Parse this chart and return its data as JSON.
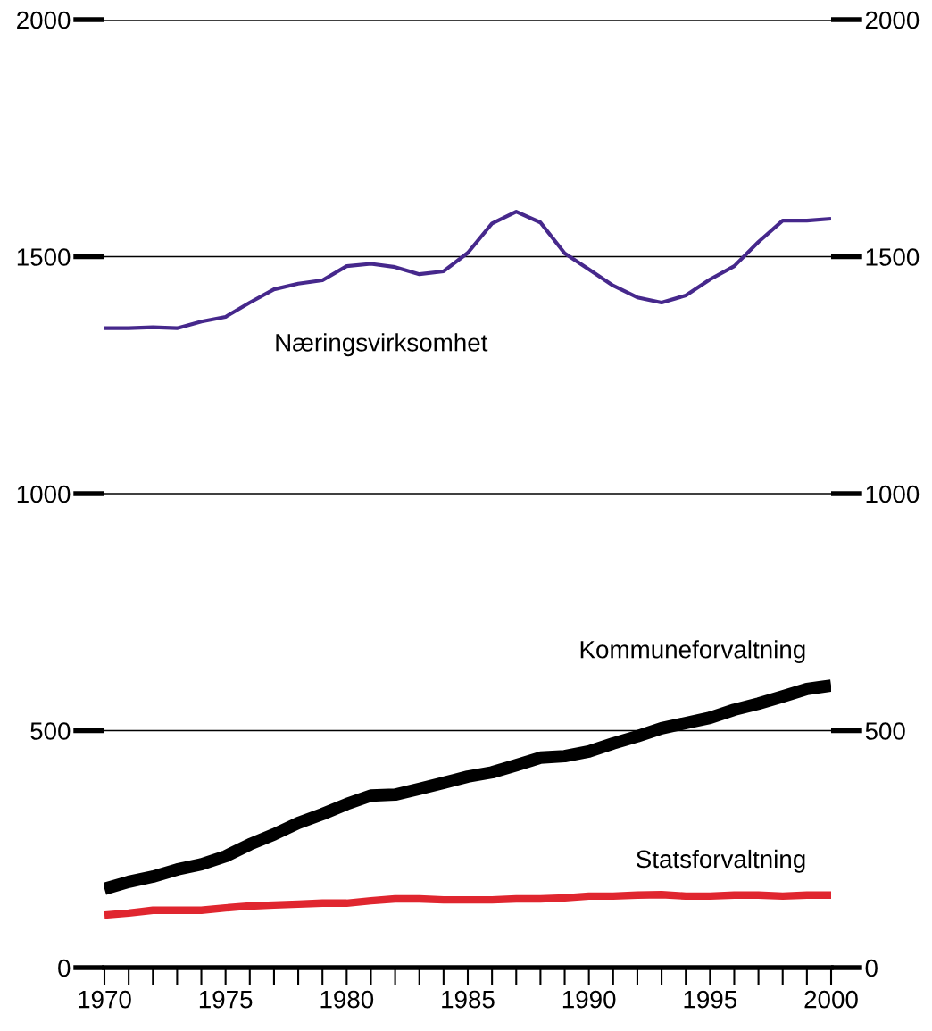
{
  "chart_data": {
    "type": "line",
    "x": [
      1970,
      1971,
      1972,
      1973,
      1974,
      1975,
      1976,
      1977,
      1978,
      1979,
      1980,
      1981,
      1982,
      1983,
      1984,
      1985,
      1986,
      1987,
      1988,
      1989,
      1990,
      1991,
      1992,
      1993,
      1994,
      1995,
      1996,
      1997,
      1998,
      1999,
      2000
    ],
    "series": [
      {
        "name": "Næringsvirksomhet",
        "color": "#46288c",
        "values": [
          1349,
          1349,
          1351,
          1349,
          1363,
          1373,
          1403,
          1431,
          1443,
          1450,
          1480,
          1485,
          1478,
          1463,
          1469,
          1508,
          1570,
          1595,
          1572,
          1507,
          1473,
          1439,
          1414,
          1403,
          1418,
          1452,
          1480,
          1531,
          1576,
          1576,
          1580
        ]
      },
      {
        "name": "Kommuneforvaltning",
        "color": "#000000",
        "values": [
          166,
          181,
          192,
          207,
          218,
          235,
          260,
          281,
          305,
          324,
          345,
          363,
          365,
          377,
          390,
          403,
          412,
          427,
          443,
          446,
          456,
          473,
          488,
          505,
          516,
          527,
          544,
          557,
          572,
          588,
          595
        ]
      },
      {
        "name": "Statsforvaltning",
        "color": "#e0262f",
        "values": [
          111,
          115,
          121,
          121,
          121,
          126,
          130,
          132,
          134,
          136,
          136,
          141,
          145,
          145,
          143,
          143,
          143,
          145,
          145,
          147,
          151,
          151,
          153,
          154,
          151,
          151,
          153,
          153,
          151,
          153,
          153
        ]
      }
    ],
    "xlim": [
      1970,
      2000
    ],
    "xticks": [
      1970,
      1975,
      1980,
      1985,
      1990,
      1995,
      2000
    ],
    "ylim": [
      0,
      2000
    ],
    "yticks": [
      0,
      500,
      1000,
      1500,
      2000
    ],
    "y2lim": [
      0,
      2000
    ],
    "y2ticks": [
      0,
      500,
      1000,
      1500,
      2000
    ],
    "grid": "y",
    "legend": false,
    "marker": "none",
    "line_style": "solid"
  }
}
